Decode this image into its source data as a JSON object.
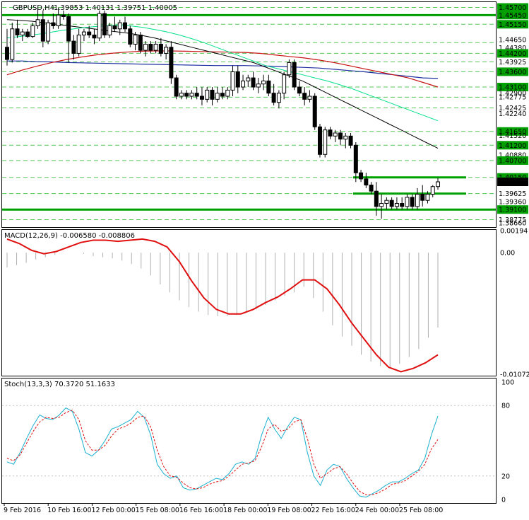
{
  "header": {
    "symbol_title": "GBPUSD,H4",
    "ohlc": "1.39853 1.40131 1.39751 1.40005"
  },
  "colors": {
    "background": "#ffffff",
    "grid": "#ffffff",
    "bull_candle": "#ffffff",
    "bear_candle": "#000000",
    "ma_fast": "#00e08a",
    "ma_slow_red": "#c81414",
    "ma_blue": "#1f2fa0",
    "ma_black": "#000000",
    "level_line": "#00a000",
    "level_dashed": "#55c855",
    "price_label_bg": "#00a000",
    "price_label_text": "#ffffff",
    "current_label_bg": "#000000",
    "macd_hist": "#b0b0b0",
    "macd_signal": "#e01010",
    "stoch_main": "#1ab0d0",
    "stoch_signal": "#e01010"
  },
  "chart_data": [
    {
      "type": "candlestick",
      "title": "GBPUSD,H4",
      "ylim": [
        1.3855,
        1.4585
      ],
      "price_levels": [
        1.457,
        1.4545,
        1.4515,
        1.4455,
        1.442,
        1.4392,
        1.436,
        1.431,
        1.4277,
        1.4242,
        1.4165,
        1.412,
        1.407,
        1.4015,
        1.3962,
        1.391,
        1.3877
      ],
      "price_scale_ticks": [
        "1.45700",
        "1.45450",
        "1.45150",
        "1.44650",
        "1.44380",
        "1.44200",
        "1.43925",
        "1.43600",
        "1.43100",
        "1.42900",
        "1.42775",
        "1.42425",
        "1.42240",
        "1.41650",
        "1.41520",
        "1.41200",
        "1.40880",
        "1.40700",
        "1.40150",
        "1.40005",
        "1.39625",
        "1.39360",
        "1.39100",
        "1.38775",
        "1.38660"
      ],
      "current_price": "1.40005",
      "horizontal_levels": {
        "solid": [
          1.4545,
          1.4015,
          1.3962,
          1.391
        ],
        "dashed": [
          1.457,
          1.4515,
          1.4455,
          1.442,
          1.4392,
          1.436,
          1.431,
          1.4277,
          1.4242,
          1.4165,
          1.412,
          1.407,
          1.4015,
          1.3962,
          1.3877
        ]
      },
      "candles": [
        [
          1.444,
          1.45,
          1.438,
          1.44
        ],
        [
          1.44,
          1.452,
          1.439,
          1.45
        ],
        [
          1.45,
          1.453,
          1.447,
          1.448
        ],
        [
          1.448,
          1.45,
          1.446,
          1.449
        ],
        [
          1.449,
          1.45,
          1.447,
          1.4475
        ],
        [
          1.4475,
          1.452,
          1.447,
          1.451
        ],
        [
          1.451,
          1.457,
          1.45,
          1.453
        ],
        [
          1.453,
          1.456,
          1.444,
          1.446
        ],
        [
          1.446,
          1.453,
          1.445,
          1.452
        ],
        [
          1.452,
          1.455,
          1.45,
          1.451
        ],
        [
          1.451,
          1.457,
          1.45,
          1.4545
        ],
        [
          1.4545,
          1.456,
          1.453,
          1.454
        ],
        [
          1.454,
          1.455,
          1.439,
          1.446
        ],
        [
          1.446,
          1.448,
          1.44,
          1.442
        ],
        [
          1.442,
          1.45,
          1.441,
          1.448
        ],
        [
          1.448,
          1.45,
          1.446,
          1.449
        ],
        [
          1.449,
          1.451,
          1.447,
          1.448
        ],
        [
          1.448,
          1.45,
          1.445,
          1.447
        ],
        [
          1.447,
          1.456,
          1.446,
          1.455
        ],
        [
          1.455,
          1.456,
          1.447,
          1.448
        ],
        [
          1.448,
          1.452,
          1.447,
          1.451
        ],
        [
          1.451,
          1.454,
          1.449,
          1.45
        ],
        [
          1.45,
          1.453,
          1.448,
          1.452
        ],
        [
          1.452,
          1.454,
          1.449,
          1.45
        ],
        [
          1.45,
          1.451,
          1.444,
          1.445
        ],
        [
          1.445,
          1.449,
          1.443,
          1.448
        ],
        [
          1.448,
          1.449,
          1.442,
          1.443
        ],
        [
          1.443,
          1.446,
          1.441,
          1.445
        ],
        [
          1.445,
          1.446,
          1.442,
          1.443
        ],
        [
          1.443,
          1.446,
          1.442,
          1.445
        ],
        [
          1.445,
          1.447,
          1.441,
          1.442
        ],
        [
          1.442,
          1.445,
          1.44,
          1.444
        ],
        [
          1.444,
          1.446,
          1.432,
          1.434
        ],
        [
          1.434,
          1.435,
          1.427,
          1.428
        ],
        [
          1.428,
          1.43,
          1.427,
          1.429
        ],
        [
          1.429,
          1.43,
          1.427,
          1.428
        ],
        [
          1.428,
          1.43,
          1.427,
          1.429
        ],
        [
          1.429,
          1.431,
          1.427,
          1.428
        ],
        [
          1.428,
          1.431,
          1.425,
          1.427
        ],
        [
          1.427,
          1.431,
          1.426,
          1.43
        ],
        [
          1.43,
          1.431,
          1.425,
          1.427
        ],
        [
          1.427,
          1.431,
          1.426,
          1.429
        ],
        [
          1.429,
          1.431,
          1.427,
          1.428
        ],
        [
          1.428,
          1.431,
          1.427,
          1.43
        ],
        [
          1.43,
          1.438,
          1.428,
          1.436
        ],
        [
          1.436,
          1.438,
          1.429,
          1.431
        ],
        [
          1.431,
          1.435,
          1.43,
          1.433
        ],
        [
          1.433,
          1.435,
          1.431,
          1.434
        ],
        [
          1.434,
          1.436,
          1.43,
          1.431
        ],
        [
          1.431,
          1.434,
          1.429,
          1.432
        ],
        [
          1.432,
          1.435,
          1.43,
          1.433
        ],
        [
          1.433,
          1.435,
          1.428,
          1.429
        ],
        [
          1.429,
          1.432,
          1.425,
          1.426
        ],
        [
          1.426,
          1.43,
          1.424,
          1.429
        ],
        [
          1.429,
          1.436,
          1.427,
          1.435
        ],
        [
          1.435,
          1.44,
          1.434,
          1.439
        ],
        [
          1.439,
          1.44,
          1.43,
          1.431
        ],
        [
          1.431,
          1.433,
          1.428,
          1.429
        ],
        [
          1.429,
          1.431,
          1.425,
          1.427
        ],
        [
          1.427,
          1.43,
          1.426,
          1.428
        ],
        [
          1.428,
          1.429,
          1.417,
          1.418
        ],
        [
          1.418,
          1.419,
          1.408,
          1.409
        ],
        [
          1.409,
          1.418,
          1.408,
          1.417
        ],
        [
          1.417,
          1.418,
          1.414,
          1.415
        ],
        [
          1.415,
          1.417,
          1.413,
          1.416
        ],
        [
          1.416,
          1.417,
          1.412,
          1.414
        ],
        [
          1.414,
          1.416,
          1.411,
          1.415
        ],
        [
          1.415,
          1.416,
          1.411,
          1.412
        ],
        [
          1.412,
          1.413,
          1.4,
          1.403
        ],
        [
          1.403,
          1.404,
          1.4,
          1.401
        ],
        [
          1.401,
          1.403,
          1.398,
          1.399
        ],
        [
          1.399,
          1.4,
          1.396,
          1.397
        ],
        [
          1.397,
          1.4,
          1.389,
          1.392
        ],
        [
          1.392,
          1.396,
          1.388,
          1.393
        ],
        [
          1.393,
          1.395,
          1.391,
          1.394
        ],
        [
          1.394,
          1.395,
          1.391,
          1.392
        ],
        [
          1.392,
          1.395,
          1.391,
          1.393
        ],
        [
          1.393,
          1.395,
          1.391,
          1.392
        ],
        [
          1.392,
          1.396,
          1.391,
          1.395
        ],
        [
          1.395,
          1.396,
          1.391,
          1.392
        ],
        [
          1.392,
          1.398,
          1.391,
          1.396
        ],
        [
          1.396,
          1.399,
          1.392,
          1.394
        ],
        [
          1.394,
          1.397,
          1.393,
          1.396
        ],
        [
          1.396,
          1.399,
          1.395,
          1.3985
        ],
        [
          1.3985,
          1.4013,
          1.3975,
          1.40005
        ]
      ],
      "ma_fast_values": [
        1.447,
        1.4475,
        1.448,
        1.4485,
        1.4492,
        1.4498,
        1.4503,
        1.4507,
        1.451,
        1.4512,
        1.451,
        1.4505,
        1.4498,
        1.449,
        1.448,
        1.4468,
        1.4455,
        1.444,
        1.4425,
        1.441,
        1.4395,
        1.438,
        1.437,
        1.436,
        1.435,
        1.434,
        1.433,
        1.4318,
        1.4305,
        1.429,
        1.4275,
        1.426,
        1.4245,
        1.423,
        1.4215,
        1.42
      ],
      "ma_black_values": [
        1.453,
        1.4528,
        1.4525,
        1.452,
        1.4515,
        1.451,
        1.4505,
        1.45,
        1.4495,
        1.449,
        1.4485,
        1.4478,
        1.447,
        1.446,
        1.445,
        1.444,
        1.443,
        1.442,
        1.441,
        1.44,
        1.439,
        1.4375,
        1.436,
        1.4345,
        1.433,
        1.431,
        1.429,
        1.427,
        1.425,
        1.423,
        1.421,
        1.419,
        1.417,
        1.415,
        1.413,
        1.411
      ],
      "ma_red_values": [
        1.435,
        1.4365,
        1.4378,
        1.439,
        1.44,
        1.4408,
        1.4415,
        1.442,
        1.4424,
        1.4427,
        1.4428,
        1.4428,
        1.4427,
        1.4426,
        1.4425,
        1.4424,
        1.4423,
        1.442,
        1.4415,
        1.441,
        1.4405,
        1.4398,
        1.439,
        1.438,
        1.437,
        1.436,
        1.435,
        1.434,
        1.4325,
        1.431
      ],
      "ma_blue_values": [
        1.4395,
        1.4395,
        1.4393,
        1.4392,
        1.439,
        1.4389,
        1.4388,
        1.4387,
        1.4386,
        1.4385,
        1.4384,
        1.4383,
        1.4382,
        1.4381,
        1.438,
        1.438,
        1.438,
        1.4379,
        1.4378,
        1.4376,
        1.4374,
        1.4372,
        1.4368,
        1.4364,
        1.436,
        1.4355,
        1.435,
        1.4345,
        1.434,
        1.4338
      ]
    },
    {
      "type": "histogram_line",
      "title": "MACD(12,26,9) -0.006580 -0.008806",
      "ylim": [
        -0.01078,
        0.00194
      ],
      "scale_ticks": [
        "0.00194",
        "0.00",
        "-0.010727"
      ],
      "histogram": [
        -0.0013,
        -0.0011,
        -0.0009,
        -0.0006,
        -0.0004,
        -0.0002,
        0.0,
        0.0,
        -0.0001,
        -0.0003,
        -0.0004,
        -0.0005,
        -0.0007,
        -0.001,
        -0.0014,
        -0.002,
        -0.0028,
        -0.0035,
        -0.0042,
        -0.0048,
        -0.0052,
        -0.0055,
        -0.0056,
        -0.0056,
        -0.0055,
        -0.0053,
        -0.005,
        -0.0046,
        -0.0042,
        -0.0038,
        -0.0035,
        -0.003,
        -0.004,
        -0.0052,
        -0.0064,
        -0.0074,
        -0.0082,
        -0.009,
        -0.0096,
        -0.01,
        -0.0102,
        -0.0098,
        -0.0092,
        -0.0085,
        -0.0075,
        -0.0066
      ],
      "signal": [
        0.0012,
        0.0008,
        0.0002,
        -0.0001,
        0.0001,
        0.0005,
        0.0009,
        0.0011,
        0.0011,
        0.001,
        0.0011,
        0.0012,
        0.001,
        0.0005,
        -0.0008,
        -0.0025,
        -0.004,
        -0.005,
        -0.0054,
        -0.0054,
        -0.005,
        -0.0044,
        -0.0039,
        -0.0032,
        -0.0024,
        -0.0024,
        -0.0032,
        -0.0046,
        -0.0062,
        -0.0076,
        -0.009,
        -0.0101,
        -0.0105,
        -0.0102,
        -0.0097,
        -0.009
      ]
    },
    {
      "type": "line",
      "title": "Stoch(13,3,3) 70.3720 51.1633",
      "ylim": [
        0,
        100
      ],
      "scale_ticks": [
        "100",
        "80",
        "20",
        "0"
      ],
      "levels": [
        80,
        20
      ],
      "main": [
        32,
        30,
        40,
        52,
        63,
        72,
        69,
        68,
        72,
        78,
        75,
        60,
        40,
        37,
        42,
        50,
        60,
        62,
        65,
        68,
        75,
        70,
        55,
        30,
        22,
        18,
        20,
        10,
        8,
        9,
        12,
        15,
        18,
        17,
        22,
        30,
        32,
        30,
        35,
        55,
        70,
        60,
        52,
        62,
        70,
        68,
        40,
        20,
        12,
        25,
        30,
        28,
        18,
        10,
        3,
        2,
        5,
        8,
        12,
        15,
        15,
        18,
        22,
        25,
        35,
        55,
        71
      ],
      "signal": [
        35,
        33,
        38,
        48,
        58,
        66,
        70,
        69,
        70,
        74,
        76,
        68,
        50,
        42,
        42,
        46,
        54,
        60,
        62,
        65,
        70,
        71,
        62,
        42,
        28,
        20,
        19,
        14,
        10,
        9,
        10,
        13,
        15,
        16,
        20,
        25,
        30,
        31,
        33,
        45,
        60,
        64,
        58,
        60,
        66,
        68,
        52,
        30,
        18,
        22,
        26,
        28,
        22,
        14,
        7,
        4,
        4,
        6,
        9,
        13,
        14,
        16,
        20,
        24,
        30,
        43,
        51
      ]
    }
  ],
  "x_axis_labels": [
    "9 Feb 2016",
    "10 Feb 16:00",
    "12 Feb 00:00",
    "15 Feb 08:00",
    "16 Feb 16:00",
    "18 Feb 00:00",
    "19 Feb 08:00",
    "22 Feb 16:00",
    "24 Feb 00:00",
    "25 Feb 08:00"
  ]
}
